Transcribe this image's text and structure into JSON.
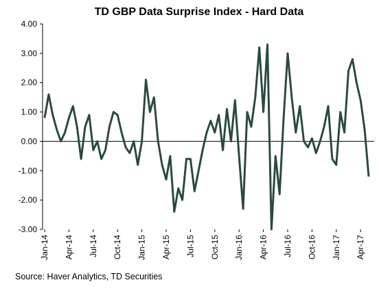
{
  "chart_data": {
    "type": "line",
    "title": "TD GBP Data Surprise Index - Hard Data",
    "source": "Source: Haver Analytics, TD Securities",
    "categories": [
      "Jan-14",
      null,
      null,
      null,
      null,
      null,
      "Apr-14",
      null,
      null,
      null,
      null,
      null,
      "Jul-14",
      null,
      null,
      null,
      null,
      null,
      "Oct-14",
      null,
      null,
      null,
      null,
      null,
      "Jan-15",
      null,
      null,
      null,
      null,
      null,
      "Apr-15",
      null,
      null,
      null,
      null,
      null,
      "Jul-15",
      null,
      null,
      null,
      null,
      null,
      "Oct-15",
      null,
      null,
      null,
      null,
      null,
      "Jan-16",
      null,
      null,
      null,
      null,
      null,
      "Apr-16",
      null,
      null,
      null,
      null,
      null,
      "Jul-16",
      null,
      null,
      null,
      null,
      null,
      "Oct-16",
      null,
      null,
      null,
      null,
      null,
      "Jan-17",
      null,
      null,
      null,
      null,
      null,
      "Apr-17",
      null,
      null
    ],
    "series": [
      {
        "name": "TD GBP Data Surprise Index - Hard Data",
        "color": "#2b4a3d",
        "values": [
          0.8,
          1.6,
          0.9,
          0.4,
          0.0,
          0.3,
          0.8,
          1.2,
          0.5,
          -0.6,
          0.5,
          0.9,
          -0.3,
          0.0,
          -0.6,
          -0.3,
          0.5,
          1.0,
          0.9,
          0.3,
          -0.2,
          -0.4,
          0.0,
          -0.8,
          0.0,
          2.1,
          1.0,
          1.5,
          0.0,
          -0.8,
          -1.3,
          -0.5,
          -2.4,
          -1.6,
          -2.0,
          -0.6,
          -0.6,
          -1.7,
          -1.0,
          -0.3,
          0.3,
          0.7,
          0.3,
          0.9,
          -0.3,
          1.1,
          0.0,
          1.4,
          -0.5,
          -2.3,
          1.0,
          0.5,
          1.5,
          3.2,
          1.0,
          3.3,
          -3.0,
          -0.5,
          -1.8,
          0.8,
          3.0,
          1.5,
          0.3,
          1.2,
          0.0,
          -0.2,
          0.1,
          -0.4,
          0.0,
          0.5,
          1.2,
          -0.6,
          -0.8,
          1.0,
          0.3,
          2.4,
          2.8,
          2.0,
          1.4,
          0.4,
          -1.2
        ]
      }
    ],
    "ylim": [
      -3,
      4
    ],
    "yticks": [
      {
        "value": -3,
        "label": "-3.00"
      },
      {
        "value": -2,
        "label": "-2.00"
      },
      {
        "value": -1,
        "label": "-1.00"
      },
      {
        "value": 0,
        "label": "0.00"
      },
      {
        "value": 1,
        "label": "1.00"
      },
      {
        "value": 2,
        "label": "2.00"
      },
      {
        "value": 3,
        "label": "3.00"
      },
      {
        "value": 4,
        "label": "4.00"
      }
    ]
  }
}
